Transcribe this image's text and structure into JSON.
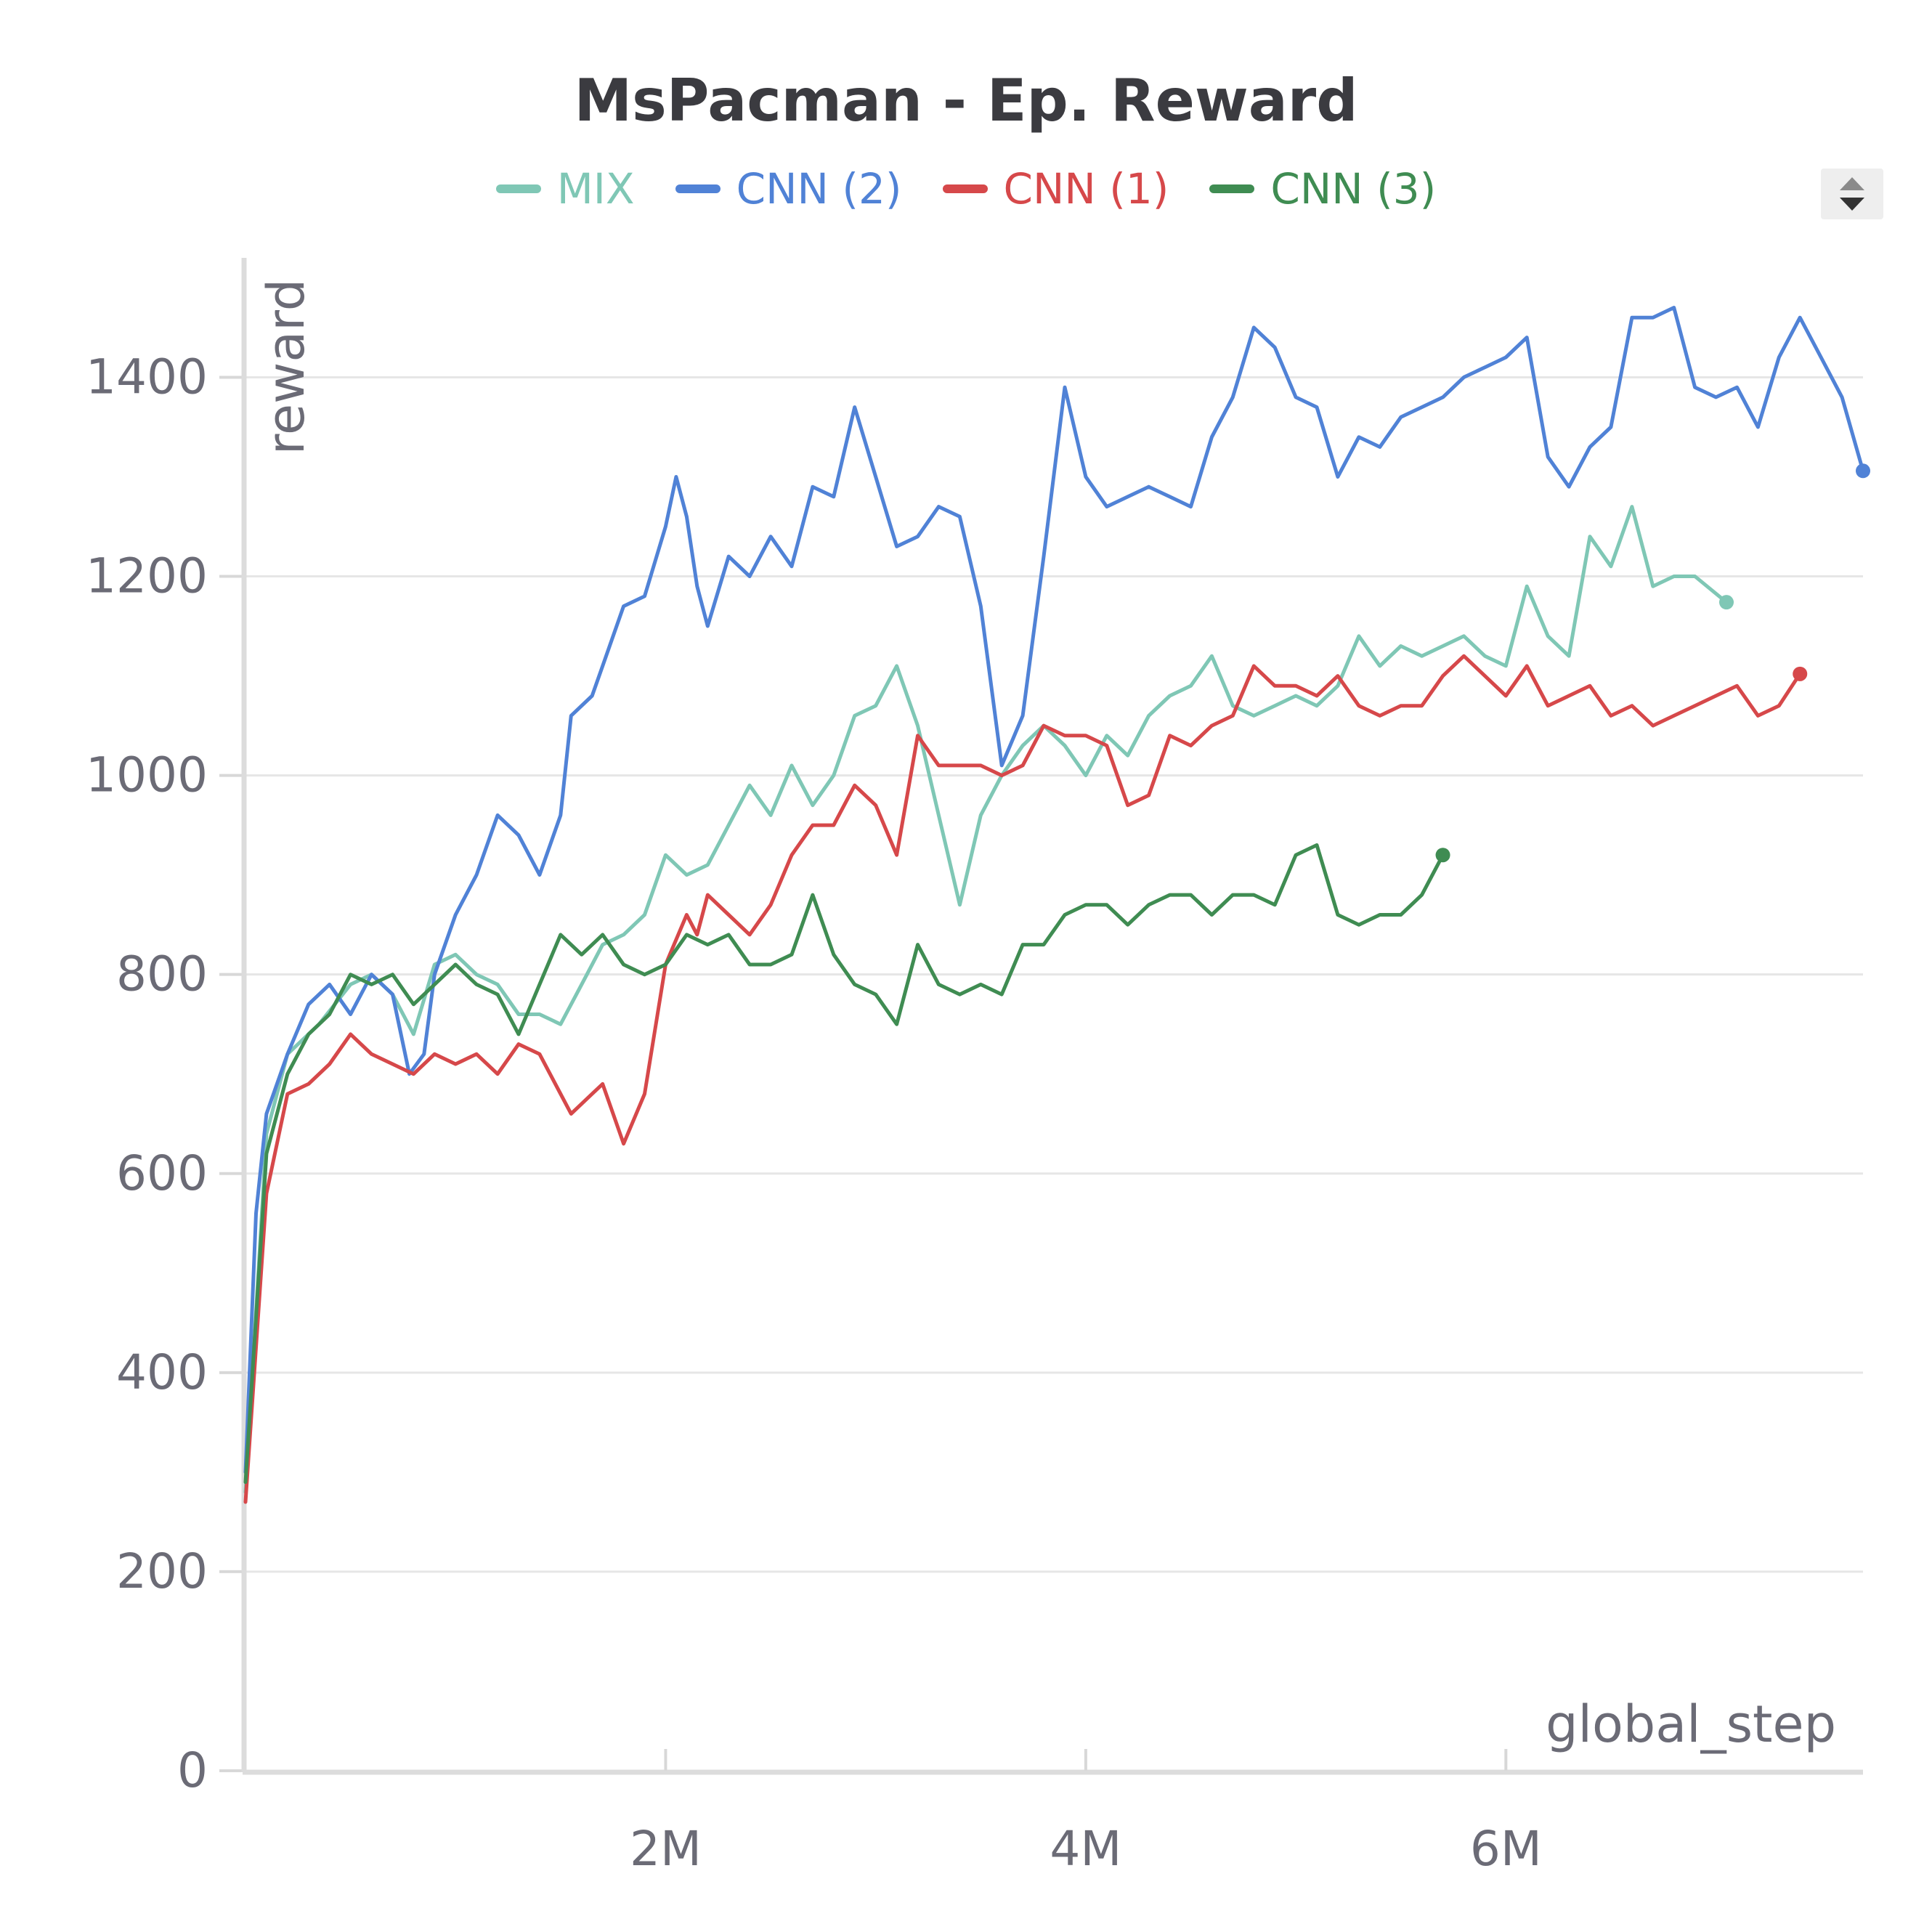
{
  "chart_data": {
    "type": "line",
    "title": "MsPacman - Ep. Reward",
    "xlabel": "global_step",
    "ylabel": "reward",
    "xlim": [
      0,
      7700000
    ],
    "ylim": [
      0,
      1520
    ],
    "yticks": [
      {
        "value": 0,
        "label": "0"
      },
      {
        "value": 200,
        "label": "200"
      },
      {
        "value": 400,
        "label": "400"
      },
      {
        "value": 600,
        "label": "600"
      },
      {
        "value": 800,
        "label": "800"
      },
      {
        "value": 1000,
        "label": "1000"
      },
      {
        "value": 1200,
        "label": "1200"
      },
      {
        "value": 1400,
        "label": "1400"
      }
    ],
    "xticks": [
      {
        "value": 2000000,
        "label": "2M"
      },
      {
        "value": 4000000,
        "label": "4M"
      },
      {
        "value": 6000000,
        "label": "6M"
      }
    ],
    "grid": true,
    "legend_position": "top-center",
    "series": [
      {
        "name": "MIX",
        "color": "#7fc7b5",
        "points": [
          [
            0,
            280
          ],
          [
            100000,
            640
          ],
          [
            200000,
            720
          ],
          [
            350000,
            750
          ],
          [
            500000,
            790
          ],
          [
            600000,
            800
          ],
          [
            700000,
            780
          ],
          [
            800000,
            740
          ],
          [
            900000,
            810
          ],
          [
            1000000,
            820
          ],
          [
            1100000,
            800
          ],
          [
            1200000,
            790
          ],
          [
            1300000,
            760
          ],
          [
            1400000,
            760
          ],
          [
            1500000,
            750
          ],
          [
            1600000,
            790
          ],
          [
            1700000,
            830
          ],
          [
            1800000,
            840
          ],
          [
            1900000,
            860
          ],
          [
            2000000,
            920
          ],
          [
            2100000,
            900
          ],
          [
            2200000,
            910
          ],
          [
            2300000,
            950
          ],
          [
            2400000,
            990
          ],
          [
            2500000,
            960
          ],
          [
            2600000,
            1010
          ],
          [
            2700000,
            970
          ],
          [
            2800000,
            1000
          ],
          [
            2900000,
            1060
          ],
          [
            3000000,
            1070
          ],
          [
            3100000,
            1110
          ],
          [
            3200000,
            1050
          ],
          [
            3300000,
            960
          ],
          [
            3400000,
            870
          ],
          [
            3500000,
            960
          ],
          [
            3600000,
            1000
          ],
          [
            3700000,
            1030
          ],
          [
            3800000,
            1050
          ],
          [
            3900000,
            1030
          ],
          [
            4000000,
            1000
          ],
          [
            4100000,
            1040
          ],
          [
            4200000,
            1020
          ],
          [
            4300000,
            1060
          ],
          [
            4400000,
            1080
          ],
          [
            4500000,
            1090
          ],
          [
            4600000,
            1120
          ],
          [
            4700000,
            1070
          ],
          [
            4800000,
            1060
          ],
          [
            4900000,
            1070
          ],
          [
            5000000,
            1080
          ],
          [
            5100000,
            1070
          ],
          [
            5200000,
            1090
          ],
          [
            5300000,
            1140
          ],
          [
            5400000,
            1110
          ],
          [
            5500000,
            1130
          ],
          [
            5600000,
            1120
          ],
          [
            5700000,
            1130
          ],
          [
            5800000,
            1140
          ],
          [
            5900000,
            1120
          ],
          [
            6000000,
            1110
          ],
          [
            6100000,
            1190
          ],
          [
            6200000,
            1140
          ],
          [
            6300000,
            1120
          ],
          [
            6400000,
            1240
          ],
          [
            6500000,
            1210
          ],
          [
            6600000,
            1270
          ],
          [
            6700000,
            1190
          ],
          [
            6800000,
            1200
          ],
          [
            6900000,
            1200
          ],
          [
            7050000,
            1174
          ]
        ]
      },
      {
        "name": "CNN (2)",
        "color": "#5082d6",
        "points": [
          [
            0,
            300
          ],
          [
            50000,
            560
          ],
          [
            100000,
            660
          ],
          [
            200000,
            720
          ],
          [
            300000,
            770
          ],
          [
            400000,
            790
          ],
          [
            500000,
            760
          ],
          [
            600000,
            800
          ],
          [
            700000,
            780
          ],
          [
            780000,
            700
          ],
          [
            850000,
            720
          ],
          [
            900000,
            800
          ],
          [
            1000000,
            860
          ],
          [
            1100000,
            900
          ],
          [
            1200000,
            960
          ],
          [
            1300000,
            940
          ],
          [
            1400000,
            900
          ],
          [
            1500000,
            960
          ],
          [
            1550000,
            1060
          ],
          [
            1650000,
            1080
          ],
          [
            1700000,
            1110
          ],
          [
            1800000,
            1170
          ],
          [
            1900000,
            1180
          ],
          [
            2000000,
            1250
          ],
          [
            2050000,
            1300
          ],
          [
            2100000,
            1260
          ],
          [
            2150000,
            1190
          ],
          [
            2200000,
            1150
          ],
          [
            2300000,
            1220
          ],
          [
            2400000,
            1200
          ],
          [
            2500000,
            1240
          ],
          [
            2600000,
            1210
          ],
          [
            2700000,
            1290
          ],
          [
            2800000,
            1280
          ],
          [
            2900000,
            1370
          ],
          [
            3000000,
            1300
          ],
          [
            3100000,
            1230
          ],
          [
            3200000,
            1240
          ],
          [
            3300000,
            1270
          ],
          [
            3400000,
            1260
          ],
          [
            3500000,
            1170
          ],
          [
            3600000,
            1010
          ],
          [
            3700000,
            1060
          ],
          [
            3800000,
            1220
          ],
          [
            3900000,
            1390
          ],
          [
            4000000,
            1300
          ],
          [
            4100000,
            1270
          ],
          [
            4200000,
            1280
          ],
          [
            4300000,
            1290
          ],
          [
            4400000,
            1280
          ],
          [
            4500000,
            1270
          ],
          [
            4600000,
            1340
          ],
          [
            4700000,
            1380
          ],
          [
            4800000,
            1450
          ],
          [
            4900000,
            1430
          ],
          [
            5000000,
            1380
          ],
          [
            5100000,
            1370
          ],
          [
            5200000,
            1300
          ],
          [
            5300000,
            1340
          ],
          [
            5400000,
            1330
          ],
          [
            5500000,
            1360
          ],
          [
            5600000,
            1370
          ],
          [
            5700000,
            1380
          ],
          [
            5800000,
            1400
          ],
          [
            5900000,
            1410
          ],
          [
            6000000,
            1420
          ],
          [
            6100000,
            1440
          ],
          [
            6200000,
            1320
          ],
          [
            6300000,
            1290
          ],
          [
            6400000,
            1330
          ],
          [
            6500000,
            1350
          ],
          [
            6600000,
            1460
          ],
          [
            6700000,
            1460
          ],
          [
            6800000,
            1470
          ],
          [
            6900000,
            1390
          ],
          [
            7000000,
            1380
          ],
          [
            7100000,
            1390
          ],
          [
            7200000,
            1350
          ],
          [
            7300000,
            1420
          ],
          [
            7400000,
            1460
          ],
          [
            7500000,
            1420
          ],
          [
            7600000,
            1380
          ],
          [
            7700000,
            1306
          ]
        ]
      },
      {
        "name": "CNN (1)",
        "color": "#d6484a",
        "points": [
          [
            0,
            270
          ],
          [
            100000,
            580
          ],
          [
            200000,
            680
          ],
          [
            300000,
            690
          ],
          [
            400000,
            710
          ],
          [
            500000,
            740
          ],
          [
            600000,
            720
          ],
          [
            700000,
            710
          ],
          [
            800000,
            700
          ],
          [
            900000,
            720
          ],
          [
            1000000,
            710
          ],
          [
            1100000,
            720
          ],
          [
            1200000,
            700
          ],
          [
            1300000,
            730
          ],
          [
            1400000,
            720
          ],
          [
            1500000,
            680
          ],
          [
            1550000,
            660
          ],
          [
            1650000,
            680
          ],
          [
            1700000,
            690
          ],
          [
            1800000,
            630
          ],
          [
            1900000,
            680
          ],
          [
            2000000,
            810
          ],
          [
            2100000,
            860
          ],
          [
            2150000,
            840
          ],
          [
            2200000,
            880
          ],
          [
            2300000,
            860
          ],
          [
            2400000,
            840
          ],
          [
            2500000,
            870
          ],
          [
            2600000,
            920
          ],
          [
            2700000,
            950
          ],
          [
            2800000,
            950
          ],
          [
            2900000,
            990
          ],
          [
            3000000,
            970
          ],
          [
            3100000,
            920
          ],
          [
            3200000,
            1040
          ],
          [
            3300000,
            1010
          ],
          [
            3400000,
            1010
          ],
          [
            3500000,
            1010
          ],
          [
            3600000,
            1000
          ],
          [
            3700000,
            1010
          ],
          [
            3800000,
            1050
          ],
          [
            3900000,
            1040
          ],
          [
            4000000,
            1040
          ],
          [
            4100000,
            1030
          ],
          [
            4200000,
            970
          ],
          [
            4300000,
            980
          ],
          [
            4400000,
            1040
          ],
          [
            4500000,
            1030
          ],
          [
            4600000,
            1050
          ],
          [
            4700000,
            1060
          ],
          [
            4800000,
            1110
          ],
          [
            4900000,
            1090
          ],
          [
            5000000,
            1090
          ],
          [
            5100000,
            1080
          ],
          [
            5200000,
            1100
          ],
          [
            5300000,
            1070
          ],
          [
            5400000,
            1060
          ],
          [
            5500000,
            1070
          ],
          [
            5600000,
            1070
          ],
          [
            5700000,
            1100
          ],
          [
            5800000,
            1120
          ],
          [
            5900000,
            1100
          ],
          [
            6000000,
            1080
          ],
          [
            6100000,
            1110
          ],
          [
            6200000,
            1070
          ],
          [
            6300000,
            1080
          ],
          [
            6400000,
            1090
          ],
          [
            6500000,
            1060
          ],
          [
            6600000,
            1070
          ],
          [
            6700000,
            1050
          ],
          [
            6800000,
            1060
          ],
          [
            6900000,
            1070
          ],
          [
            7000000,
            1080
          ],
          [
            7100000,
            1090
          ],
          [
            7200000,
            1060
          ],
          [
            7300000,
            1070
          ],
          [
            7400000,
            1102
          ]
        ]
      },
      {
        "name": "CNN (3)",
        "color": "#3f8c52",
        "points": [
          [
            0,
            290
          ],
          [
            100000,
            620
          ],
          [
            200000,
            700
          ],
          [
            300000,
            740
          ],
          [
            400000,
            760
          ],
          [
            500000,
            800
          ],
          [
            600000,
            790
          ],
          [
            700000,
            800
          ],
          [
            800000,
            770
          ],
          [
            900000,
            790
          ],
          [
            1000000,
            810
          ],
          [
            1100000,
            790
          ],
          [
            1200000,
            780
          ],
          [
            1300000,
            740
          ],
          [
            1400000,
            790
          ],
          [
            1500000,
            840
          ],
          [
            1600000,
            820
          ],
          [
            1700000,
            840
          ],
          [
            1800000,
            810
          ],
          [
            1900000,
            800
          ],
          [
            2000000,
            810
          ],
          [
            2100000,
            840
          ],
          [
            2200000,
            830
          ],
          [
            2300000,
            840
          ],
          [
            2400000,
            810
          ],
          [
            2500000,
            810
          ],
          [
            2600000,
            820
          ],
          [
            2700000,
            880
          ],
          [
            2800000,
            820
          ],
          [
            2900000,
            790
          ],
          [
            3000000,
            780
          ],
          [
            3100000,
            750
          ],
          [
            3200000,
            830
          ],
          [
            3300000,
            790
          ],
          [
            3400000,
            780
          ],
          [
            3500000,
            790
          ],
          [
            3600000,
            780
          ],
          [
            3700000,
            830
          ],
          [
            3800000,
            830
          ],
          [
            3900000,
            860
          ],
          [
            4000000,
            870
          ],
          [
            4100000,
            870
          ],
          [
            4200000,
            850
          ],
          [
            4300000,
            870
          ],
          [
            4400000,
            880
          ],
          [
            4500000,
            880
          ],
          [
            4600000,
            860
          ],
          [
            4700000,
            880
          ],
          [
            4800000,
            880
          ],
          [
            4900000,
            870
          ],
          [
            5000000,
            920
          ],
          [
            5100000,
            930
          ],
          [
            5200000,
            860
          ],
          [
            5300000,
            850
          ],
          [
            5400000,
            860
          ],
          [
            5500000,
            860
          ],
          [
            5600000,
            880
          ],
          [
            5700000,
            920
          ]
        ]
      }
    ]
  }
}
